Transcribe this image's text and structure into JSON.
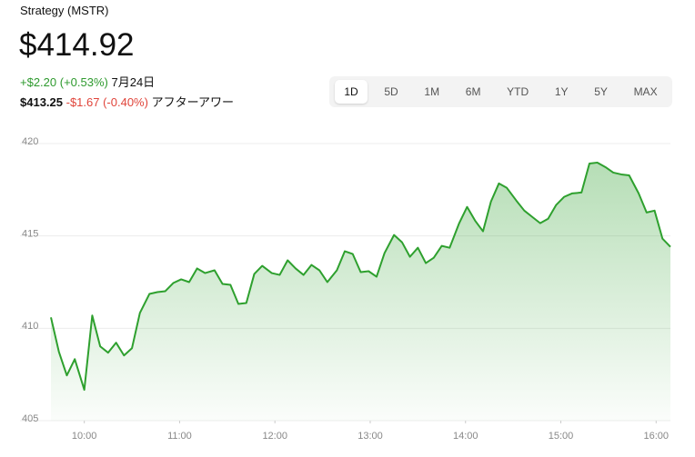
{
  "header": {
    "name": "Strategy (MSTR)",
    "price": "$414.92",
    "change": "+$2.20 (+0.53%)",
    "date": "7月24日",
    "after_price": "$413.25",
    "after_change": "-$1.67 (-0.40%)",
    "after_label": "アフターアワー"
  },
  "range_buttons": [
    "1D",
    "5D",
    "1M",
    "6M",
    "YTD",
    "1Y",
    "5Y",
    "MAX"
  ],
  "chart_data": {
    "type": "area",
    "color": "#2ea02e",
    "grid": true,
    "x": [
      579,
      584,
      589,
      594,
      600,
      605,
      610,
      615,
      620,
      625,
      630,
      635,
      641,
      646,
      651,
      656,
      661,
      666,
      671,
      676,
      682,
      687,
      692,
      697,
      702,
      707,
      712,
      718,
      723,
      728,
      733,
      738,
      743,
      748,
      753,
      759,
      764,
      769,
      774,
      779,
      784,
      789,
      795,
      800,
      805,
      810,
      815,
      820,
      825,
      830,
      836,
      841,
      846,
      851,
      856,
      861,
      866,
      872,
      877,
      882,
      887,
      892,
      897,
      902,
      907,
      913,
      918,
      923,
      928,
      933,
      938,
      943,
      949,
      954,
      959,
      964,
      969
    ],
    "values": [
      410.59,
      408.73,
      407.45,
      408.33,
      406.67,
      410.69,
      409.02,
      408.68,
      409.22,
      408.53,
      408.92,
      410.83,
      411.86,
      411.96,
      412.01,
      412.45,
      412.65,
      412.5,
      413.24,
      412.99,
      413.14,
      412.4,
      412.35,
      411.32,
      411.37,
      412.94,
      413.38,
      412.99,
      412.89,
      413.68,
      413.24,
      412.89,
      413.43,
      413.14,
      412.5,
      413.14,
      414.17,
      414.02,
      413.04,
      413.09,
      412.79,
      414.07,
      415.05,
      414.66,
      413.87,
      414.36,
      413.53,
      413.82,
      414.46,
      414.36,
      415.69,
      416.57,
      415.83,
      415.25,
      416.86,
      417.84,
      417.6,
      416.91,
      416.37,
      416.03,
      415.69,
      415.93,
      416.67,
      417.11,
      417.3,
      417.35,
      418.92,
      418.97,
      418.73,
      418.43,
      418.33,
      418.28,
      417.3,
      416.27,
      416.37,
      414.85,
      414.41
    ],
    "xlim": [
      579,
      969
    ],
    "xticks": [
      {
        "value": 600,
        "label": "10:00"
      },
      {
        "value": 660,
        "label": "11:00"
      },
      {
        "value": 720,
        "label": "12:00"
      },
      {
        "value": 780,
        "label": "13:00"
      },
      {
        "value": 840,
        "label": "14:00"
      },
      {
        "value": 900,
        "label": "15:00"
      },
      {
        "value": 960,
        "label": "16:00"
      }
    ],
    "ylim": [
      405,
      420
    ],
    "yticks": [
      405,
      410,
      415,
      420
    ]
  }
}
